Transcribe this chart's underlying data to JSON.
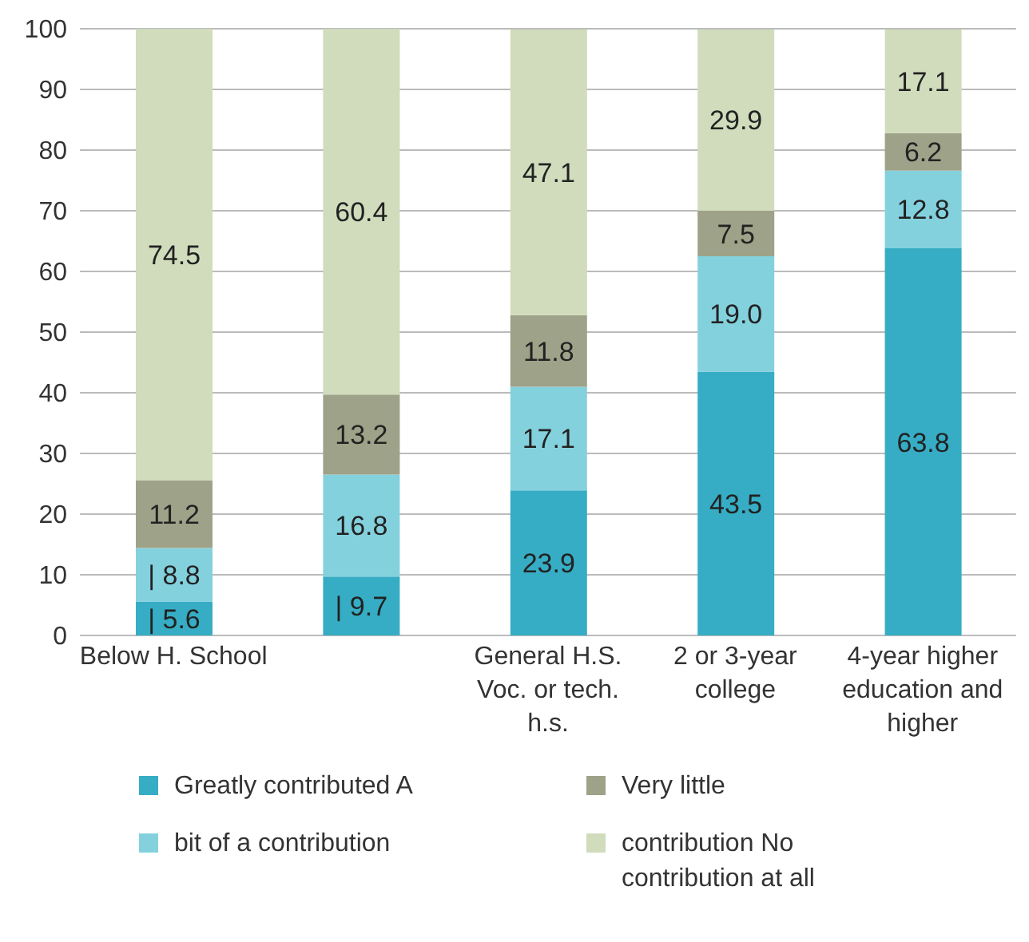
{
  "chart_data": {
    "type": "bar",
    "stacked": true,
    "categories": [
      "Below H. School",
      null,
      "General H.S. Voc. or tech. h.s.",
      "2 or 3-year college",
      "4-year higher education and higher"
    ],
    "series": [
      {
        "name": "Greatly contributed A",
        "color": "#36adc4",
        "values": [
          5.6,
          9.7,
          23.9,
          43.5,
          63.8
        ],
        "value_labels": [
          "| 5.6",
          "| 9.7",
          "23.9",
          "43.5",
          "63.8"
        ]
      },
      {
        "name": "bit of a contribution",
        "color": "#84d1de",
        "values": [
          8.8,
          16.8,
          17.1,
          19.0,
          12.8
        ],
        "value_labels": [
          "| 8.8",
          "16.8",
          "17.1",
          "19.0",
          "12.8"
        ]
      },
      {
        "name": "Very little",
        "color": "#9ea288",
        "values": [
          11.2,
          13.2,
          11.8,
          7.5,
          6.2
        ],
        "value_labels": [
          "11.2",
          "13.2",
          "11.8",
          "7.5",
          "6.2"
        ]
      },
      {
        "name": "contribution No contribution at all",
        "color": "#d0dcbc",
        "values": [
          74.5,
          60.4,
          47.1,
          29.9,
          17.1
        ],
        "value_labels": [
          "74.5",
          "60.4",
          "47.1",
          "29.9",
          "17.1"
        ]
      }
    ],
    "ylim": [
      0,
      100
    ],
    "yticks": [
      0,
      10,
      20,
      30,
      40,
      50,
      60,
      70,
      80,
      90,
      100
    ],
    "grid": "y",
    "legend": "bottom"
  }
}
